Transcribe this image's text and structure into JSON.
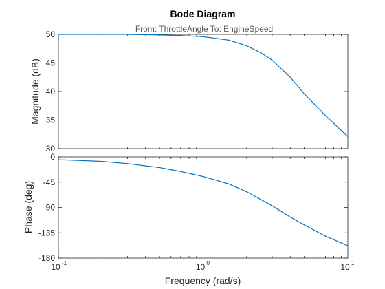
{
  "chart_data": {
    "type": "line",
    "title": "Bode Diagram",
    "subtitle": "From: ThrottleAngle  To: EngineSpeed",
    "xlabel": "Frequency  (rad/s)",
    "xscale": "log",
    "xlim": [
      0.1,
      10
    ],
    "xticks": [
      {
        "base": "10",
        "exp": "-1"
      },
      {
        "base": "10",
        "exp": "0"
      },
      {
        "base": "10",
        "exp": "1"
      }
    ],
    "line_color": "#0072bd",
    "panels": [
      {
        "name": "magnitude",
        "ylabel": "Magnitude (dB)",
        "ylim": [
          30,
          50
        ],
        "yticks": [
          "30",
          "35",
          "40",
          "45",
          "50"
        ],
        "x": [
          0.1,
          0.2,
          0.3,
          0.5,
          0.7,
          1.0,
          1.5,
          2.0,
          2.5,
          3.0,
          4.0,
          5.0,
          7.0,
          10.0
        ],
        "y": [
          50.0,
          50.0,
          50.0,
          49.9,
          49.8,
          49.6,
          49.0,
          48.0,
          46.8,
          45.5,
          42.5,
          39.6,
          35.8,
          32.1
        ]
      },
      {
        "name": "phase",
        "ylabel": "Phase (deg)",
        "ylim": [
          -180,
          0
        ],
        "yticks": [
          "-180",
          "-135",
          "-90",
          "-45",
          "0"
        ],
        "x": [
          0.1,
          0.2,
          0.3,
          0.5,
          0.7,
          1.0,
          1.5,
          2.0,
          3.0,
          4.0,
          5.0,
          7.0,
          10.0
        ],
        "y": [
          -5,
          -8,
          -12,
          -19,
          -26,
          -35,
          -48,
          -62,
          -87,
          -107,
          -121,
          -141,
          -158
        ]
      }
    ]
  }
}
